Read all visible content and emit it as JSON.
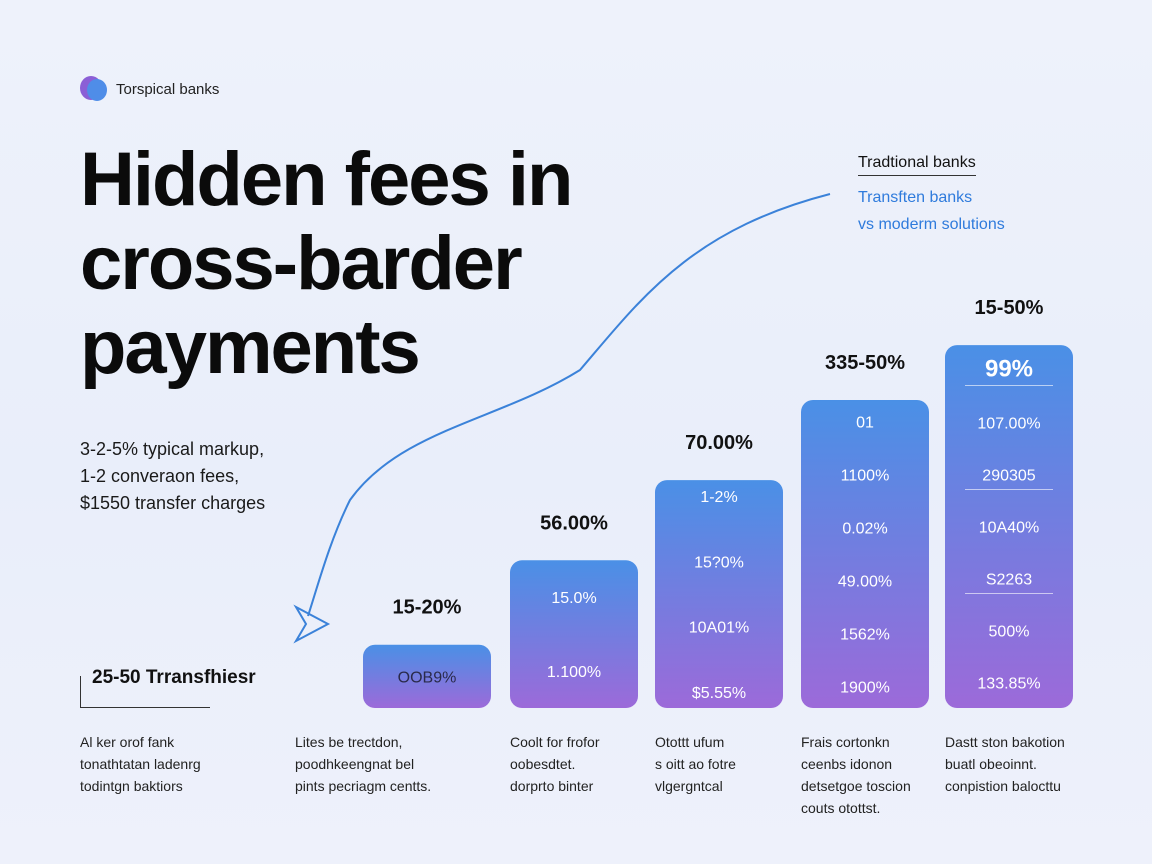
{
  "brand": {
    "name": "Torspical banks"
  },
  "headline": [
    "Hidden fees in",
    "cross-barder",
    "payments"
  ],
  "bullets": [
    "3-2-5% typical markup,",
    "1-2 converaon fees,",
    "$1550 transfer charges"
  ],
  "legend": {
    "box_label": "25-50 Trransfhiesr",
    "top_title": "Tradtional banks",
    "top_lines": [
      "Transften banks",
      "vs moderm solutions"
    ]
  },
  "colors": {
    "bar_top": "#4a90e6",
    "bar_bottom": "#9c6ad9",
    "curve": "#3b82d9"
  },
  "chart_data": {
    "type": "bar",
    "title": "Hidden fees in cross-barder payments",
    "categories": [
      "15-20%",
      "56.00%",
      "70.00%",
      "335-50%",
      "15-50%"
    ],
    "values": [
      15,
      35,
      54,
      73,
      86
    ],
    "ylim": [
      0,
      100
    ],
    "bar_labels": [
      "15-20%",
      "56.00%",
      "70.00%",
      "335-50%",
      "15-50%"
    ],
    "inner_labels": [
      [
        "OOB9%"
      ],
      [
        "15.0%",
        "1.100%"
      ],
      [
        "1-2%",
        "15?0%",
        "10A01%",
        "$5.55%"
      ],
      [
        "01",
        "1100%",
        "0.02%",
        "49.00%",
        "1562%",
        "1900%"
      ],
      [
        "99%",
        "107.00%",
        "290305",
        "10A40%",
        "S2263",
        "500%",
        "133.85%"
      ]
    ],
    "captions": [
      [
        "Al ker orof fank",
        "tonathtatan ladenrg",
        "todintgn baktiors"
      ],
      [
        "Lites be trectdon,",
        "poodhkeengnat bel",
        "pints pecriagm centts."
      ],
      [
        "Coolt for frofor",
        "oobesdtet.",
        "dorprto binter"
      ],
      [
        "Otottt ufum",
        "s oitt ao fotre",
        "vlgergntcal"
      ],
      [
        "Frais cortonkn",
        "ceenbs idonon",
        "detsetgoe toscion",
        "couts otottst."
      ],
      [
        "Dastt ston bakotion",
        "buatl obeoinnt.",
        "conpistion balocttu"
      ]
    ],
    "grid": false,
    "legend_position": "top-right"
  }
}
